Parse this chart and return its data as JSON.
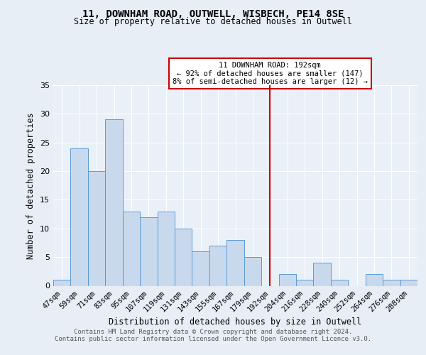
{
  "title1": "11, DOWNHAM ROAD, OUTWELL, WISBECH, PE14 8SE",
  "title2": "Size of property relative to detached houses in Outwell",
  "xlabel": "Distribution of detached houses by size in Outwell",
  "ylabel": "Number of detached properties",
  "categories": [
    "47sqm",
    "59sqm",
    "71sqm",
    "83sqm",
    "95sqm",
    "107sqm",
    "119sqm",
    "131sqm",
    "143sqm",
    "155sqm",
    "167sqm",
    "179sqm",
    "192sqm",
    "204sqm",
    "216sqm",
    "228sqm",
    "240sqm",
    "252sqm",
    "264sqm",
    "276sqm",
    "288sqm"
  ],
  "values": [
    1,
    24,
    20,
    29,
    13,
    12,
    13,
    10,
    6,
    7,
    8,
    5,
    0,
    2,
    1,
    4,
    1,
    0,
    2,
    1,
    1
  ],
  "bar_color": "#c9d9ed",
  "bar_edge_color": "#5b9bd5",
  "vline_x": 12,
  "vline_color": "#cc0000",
  "annotation_line1": "11 DOWNHAM ROAD: 192sqm",
  "annotation_line2": "← 92% of detached houses are smaller (147)",
  "annotation_line3": "8% of semi-detached houses are larger (12) →",
  "annotation_edge_color": "#cc0000",
  "footer_line1": "Contains HM Land Registry data © Crown copyright and database right 2024.",
  "footer_line2": "Contains public sector information licensed under the Open Government Licence v3.0.",
  "bg_color": "#e8eef5",
  "plot_bg_color": "#eaf0f7",
  "grid_color": "#ffffff",
  "ylim": [
    0,
    35
  ],
  "yticks": [
    0,
    5,
    10,
    15,
    20,
    25,
    30,
    35
  ]
}
